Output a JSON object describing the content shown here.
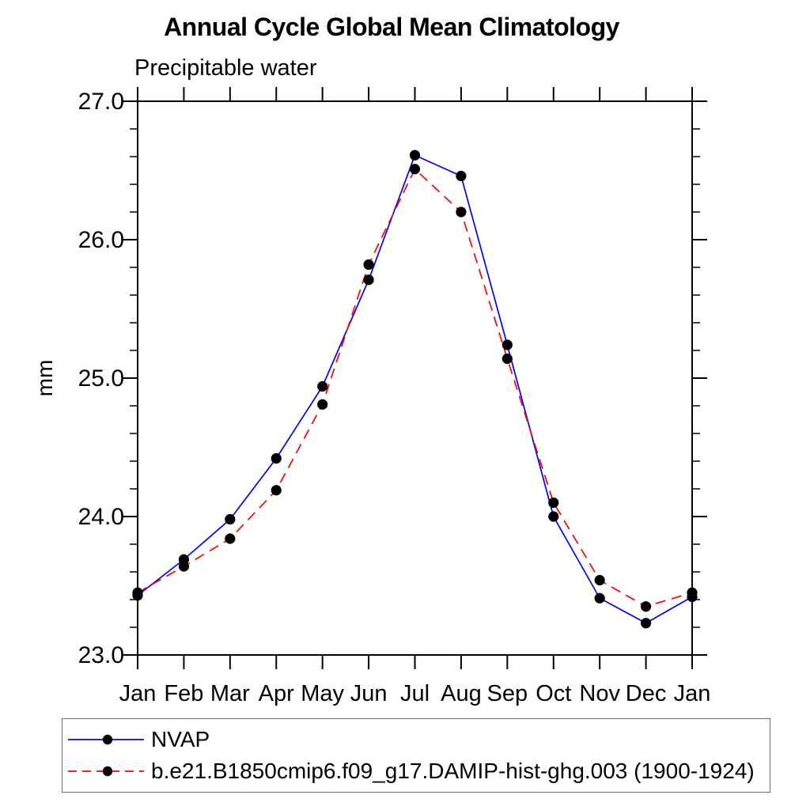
{
  "chart_data": {
    "type": "line",
    "title": "Annual Cycle Global Mean Climatology",
    "subtitle_left": "Precipitable water",
    "ylabel": "mm",
    "x": [
      "Jan",
      "Feb",
      "Mar",
      "Apr",
      "May",
      "Jun",
      "Jul",
      "Aug",
      "Sep",
      "Oct",
      "Nov",
      "Dec",
      "Jan"
    ],
    "ylim": [
      23.0,
      27.0
    ],
    "y_major_ticks": [
      23.0,
      24.0,
      25.0,
      26.0,
      27.0
    ],
    "y_tick_labels": [
      "23.0",
      "24.0",
      "25.0",
      "26.0",
      "27.0"
    ],
    "y_minor_tick_step": 0.2,
    "grid": false,
    "axis_color": "#000000",
    "legend_position": "below-plot-boxed",
    "series": [
      {
        "name": "NVAP",
        "line_color": "#0000ff",
        "line_style": "solid",
        "marker": "filled-circle",
        "marker_color": "#000000",
        "values": [
          23.43,
          23.69,
          23.98,
          24.42,
          24.94,
          25.71,
          26.61,
          26.46,
          25.24,
          24.0,
          23.41,
          23.23,
          23.42
        ]
      },
      {
        "name": "b.e21.B1850cmip6.f09_g17.DAMIP-hist-ghg.003 (1900-1924)",
        "line_color": "#ff0000",
        "line_style": "dashed",
        "marker": "filled-circle",
        "marker_color": "#000000",
        "values": [
          23.45,
          23.64,
          23.84,
          24.19,
          24.81,
          25.82,
          26.51,
          26.2,
          25.14,
          24.1,
          23.54,
          23.35,
          23.45
        ]
      }
    ]
  }
}
